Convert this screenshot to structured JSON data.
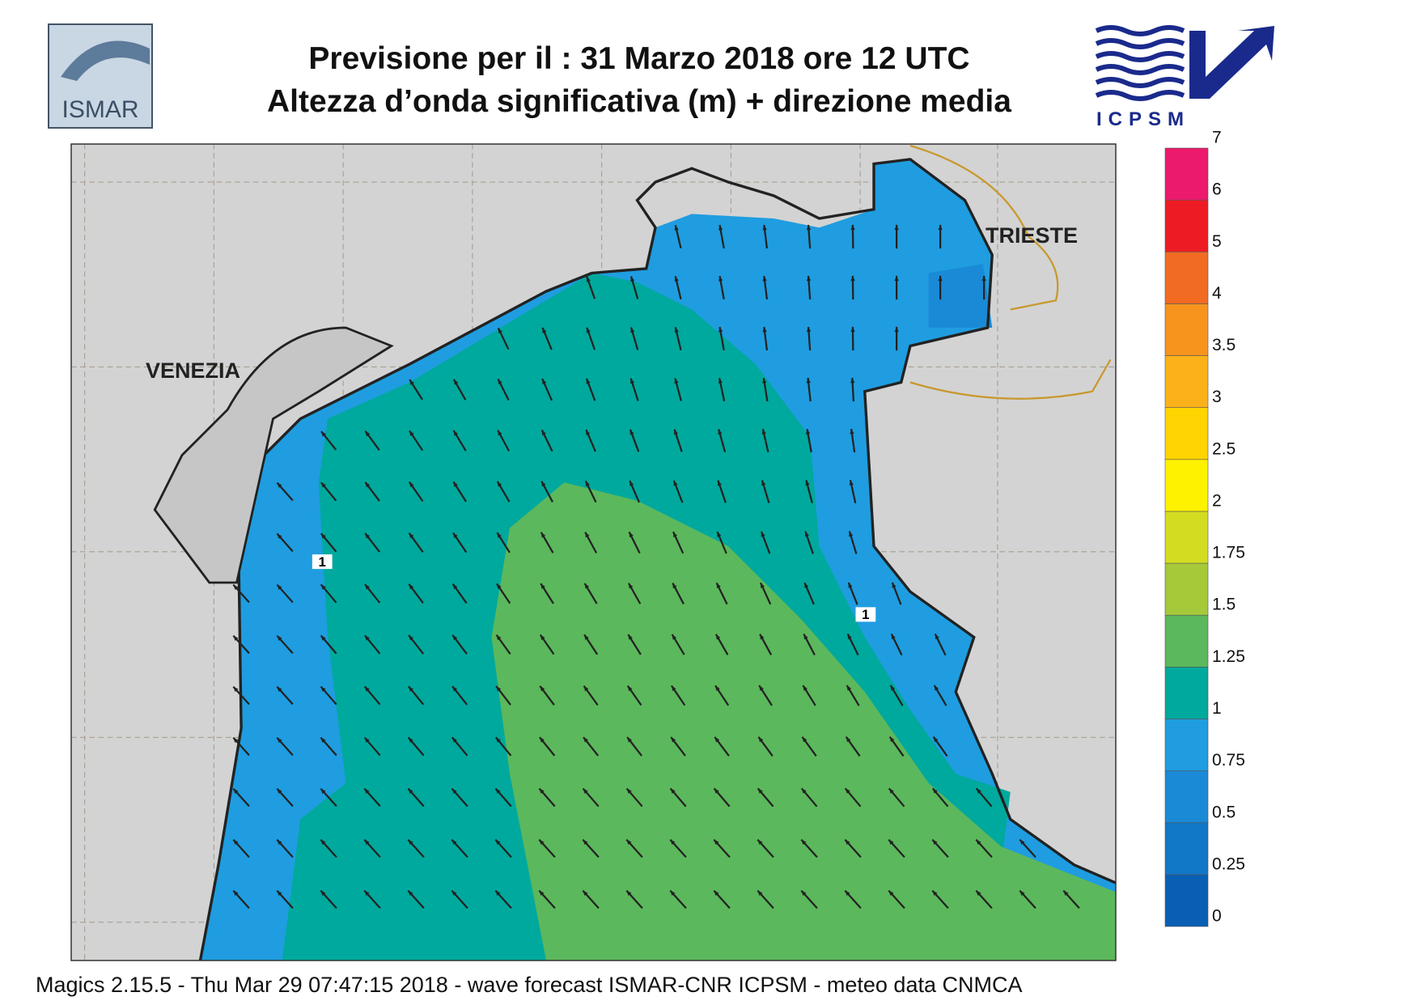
{
  "header": {
    "title_line1": "Previsione per il  :  31   Marzo   2018   ore 12 UTC",
    "title_line2": "Altezza d’onda significativa (m) + direzione media",
    "logo_left": "ISMAR",
    "logo_right": "ICPSM"
  },
  "map": {
    "cities": [
      "VENEZIA",
      "TRIESTE"
    ],
    "contour_labels": [
      "1",
      "1"
    ]
  },
  "colorbar": {
    "labels": [
      "0",
      "0.25",
      "0.5",
      "0.75",
      "1",
      "1.25",
      "1.5",
      "1.75",
      "2",
      "2.5",
      "3",
      "3.5",
      "4",
      "5",
      "6",
      "7"
    ],
    "colors": [
      "#0a5fb4",
      "#1177c7",
      "#1a8ad6",
      "#1f9de0",
      "#00a99d",
      "#5cb85c",
      "#a6c93a",
      "#d4dc22",
      "#fff200",
      "#ffd400",
      "#fbb21a",
      "#f7941d",
      "#f26b22",
      "#ed1c24",
      "#ec1a6c"
    ]
  },
  "footer": "Magics 2.15.5 - Thu Mar 29 07:47:15 2018 - wave forecast  ISMAR-CNR  ICPSM - meteo data   CNMCA"
}
